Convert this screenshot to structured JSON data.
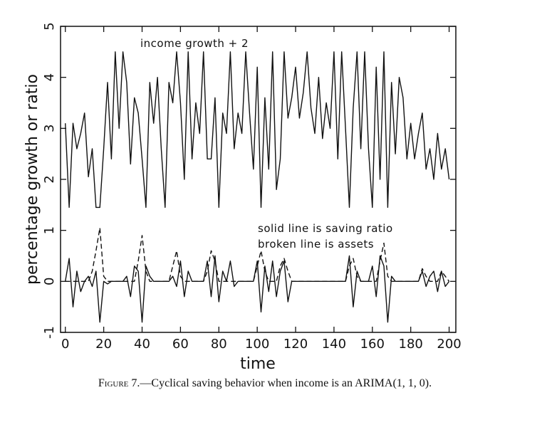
{
  "chart_data": {
    "type": "line",
    "annotations": [
      "income growth + 2",
      "solid line is saving ratio",
      "broken line is assets"
    ],
    "xlabel": "time",
    "ylabel": "percentage growth or ratio",
    "caption_label": "Figure 7.",
    "caption": "—Cyclical saving behavior when income is an ARIMA(1, 1, 0).",
    "xlim": [
      -2.5,
      203.5
    ],
    "ylim": [
      -1,
      5
    ],
    "xticks": [
      0,
      20,
      40,
      60,
      80,
      100,
      120,
      140,
      160,
      180,
      200
    ],
    "yticks": [
      -1,
      0,
      1,
      2,
      3,
      4,
      5
    ],
    "x": [
      0,
      2,
      4,
      6,
      8,
      10,
      12,
      14,
      16,
      18,
      20,
      22,
      24,
      26,
      28,
      30,
      32,
      34,
      36,
      38,
      40,
      42,
      44,
      46,
      48,
      50,
      52,
      54,
      56,
      58,
      60,
      62,
      64,
      66,
      68,
      70,
      72,
      74,
      76,
      78,
      80,
      82,
      84,
      86,
      88,
      90,
      92,
      94,
      96,
      98,
      100,
      102,
      104,
      106,
      108,
      110,
      112,
      114,
      116,
      118,
      120,
      122,
      124,
      126,
      128,
      130,
      132,
      134,
      136,
      138,
      140,
      142,
      144,
      146,
      148,
      150,
      152,
      154,
      156,
      158,
      160,
      162,
      164,
      166,
      168,
      170,
      172,
      174,
      176,
      178,
      180,
      182,
      184,
      186,
      188,
      190,
      192,
      194,
      196,
      198,
      200
    ],
    "series": [
      {
        "color": "#111111",
        "dash": false,
        "values": [
          3.1,
          1.45,
          3.1,
          2.6,
          2.9,
          3.3,
          2.05,
          2.6,
          1.45,
          1.45,
          2.6,
          3.9,
          2.4,
          4.5,
          3.0,
          4.5,
          3.9,
          2.3,
          3.6,
          3.3,
          2.4,
          1.45,
          3.9,
          3.1,
          4.0,
          2.6,
          1.45,
          3.9,
          3.5,
          4.5,
          3.5,
          2.0,
          4.5,
          2.4,
          3.5,
          2.9,
          4.5,
          2.4,
          2.4,
          3.6,
          1.45,
          3.3,
          2.9,
          4.5,
          2.6,
          3.3,
          2.9,
          4.5,
          3.3,
          2.2,
          4.2,
          1.45,
          3.6,
          2.2,
          4.5,
          1.8,
          2.4,
          4.5,
          3.2,
          3.6,
          4.2,
          3.2,
          3.7,
          4.5,
          3.4,
          2.9,
          4.0,
          2.8,
          3.5,
          3.0,
          4.5,
          2.4,
          4.5,
          3.0,
          1.45,
          3.4,
          4.5,
          2.6,
          4.5,
          2.6,
          1.45,
          4.2,
          2.0,
          4.5,
          1.45,
          3.9,
          2.5,
          4.0,
          3.6,
          2.4,
          3.1,
          2.4,
          2.9,
          3.3,
          2.2,
          2.6,
          2.0,
          2.9,
          2.2,
          2.6,
          2.0
        ]
      },
      {
        "color": "#111111",
        "dash": false,
        "values": [
          0,
          0.45,
          -0.5,
          0.2,
          -0.2,
          0,
          0.1,
          -0.1,
          0.2,
          -0.8,
          0,
          -0.05,
          0,
          0,
          0,
          0,
          0.1,
          -0.3,
          0.3,
          0.2,
          -0.8,
          0.3,
          0.1,
          0,
          0,
          0,
          0,
          0,
          0.1,
          -0.1,
          0.4,
          -0.3,
          0.2,
          0,
          0,
          0,
          0,
          0.4,
          -0.3,
          0.5,
          -0.4,
          0.2,
          0,
          0.4,
          -0.1,
          0,
          0,
          0,
          0,
          0,
          0.4,
          -0.6,
          0.3,
          -0.2,
          0.4,
          -0.3,
          0.2,
          0.4,
          -0.4,
          0,
          0,
          0,
          0,
          0,
          0,
          0,
          0,
          0,
          0,
          0,
          0,
          0,
          0,
          0,
          0.5,
          -0.5,
          0.2,
          0,
          0,
          0,
          0.3,
          -0.3,
          0.5,
          0.3,
          -0.8,
          0.1,
          0,
          0,
          0,
          0,
          0,
          0,
          0,
          0.2,
          -0.1,
          0.1,
          0.2,
          -0.2,
          0.2,
          -0.1,
          0
        ]
      },
      {
        "color": "#111111",
        "dash": true,
        "values": [
          0,
          0,
          0,
          0,
          0,
          0,
          0,
          0.2,
          0.6,
          1.05,
          0.1,
          0,
          0,
          0,
          0,
          0,
          0,
          0,
          0,
          0.4,
          0.9,
          0.2,
          0,
          0,
          0,
          0,
          0,
          0,
          0.3,
          0.6,
          0.1,
          0,
          0,
          0,
          0,
          0,
          0,
          0.2,
          0.6,
          0.4,
          0,
          0,
          0,
          0,
          0,
          0,
          0,
          0,
          0,
          0,
          0.3,
          0.6,
          0.2,
          0,
          0,
          0,
          0.3,
          0.45,
          0.2,
          0,
          0,
          0,
          0,
          0,
          0,
          0,
          0,
          0,
          0,
          0,
          0,
          0,
          0,
          0,
          0.3,
          0.45,
          0.1,
          0,
          0,
          0,
          0,
          0,
          0.4,
          0.75,
          0.1,
          0,
          0,
          0,
          0,
          0,
          0,
          0,
          0,
          0.25,
          0.1,
          0,
          0,
          0,
          0.2,
          0.1,
          0
        ]
      }
    ]
  }
}
